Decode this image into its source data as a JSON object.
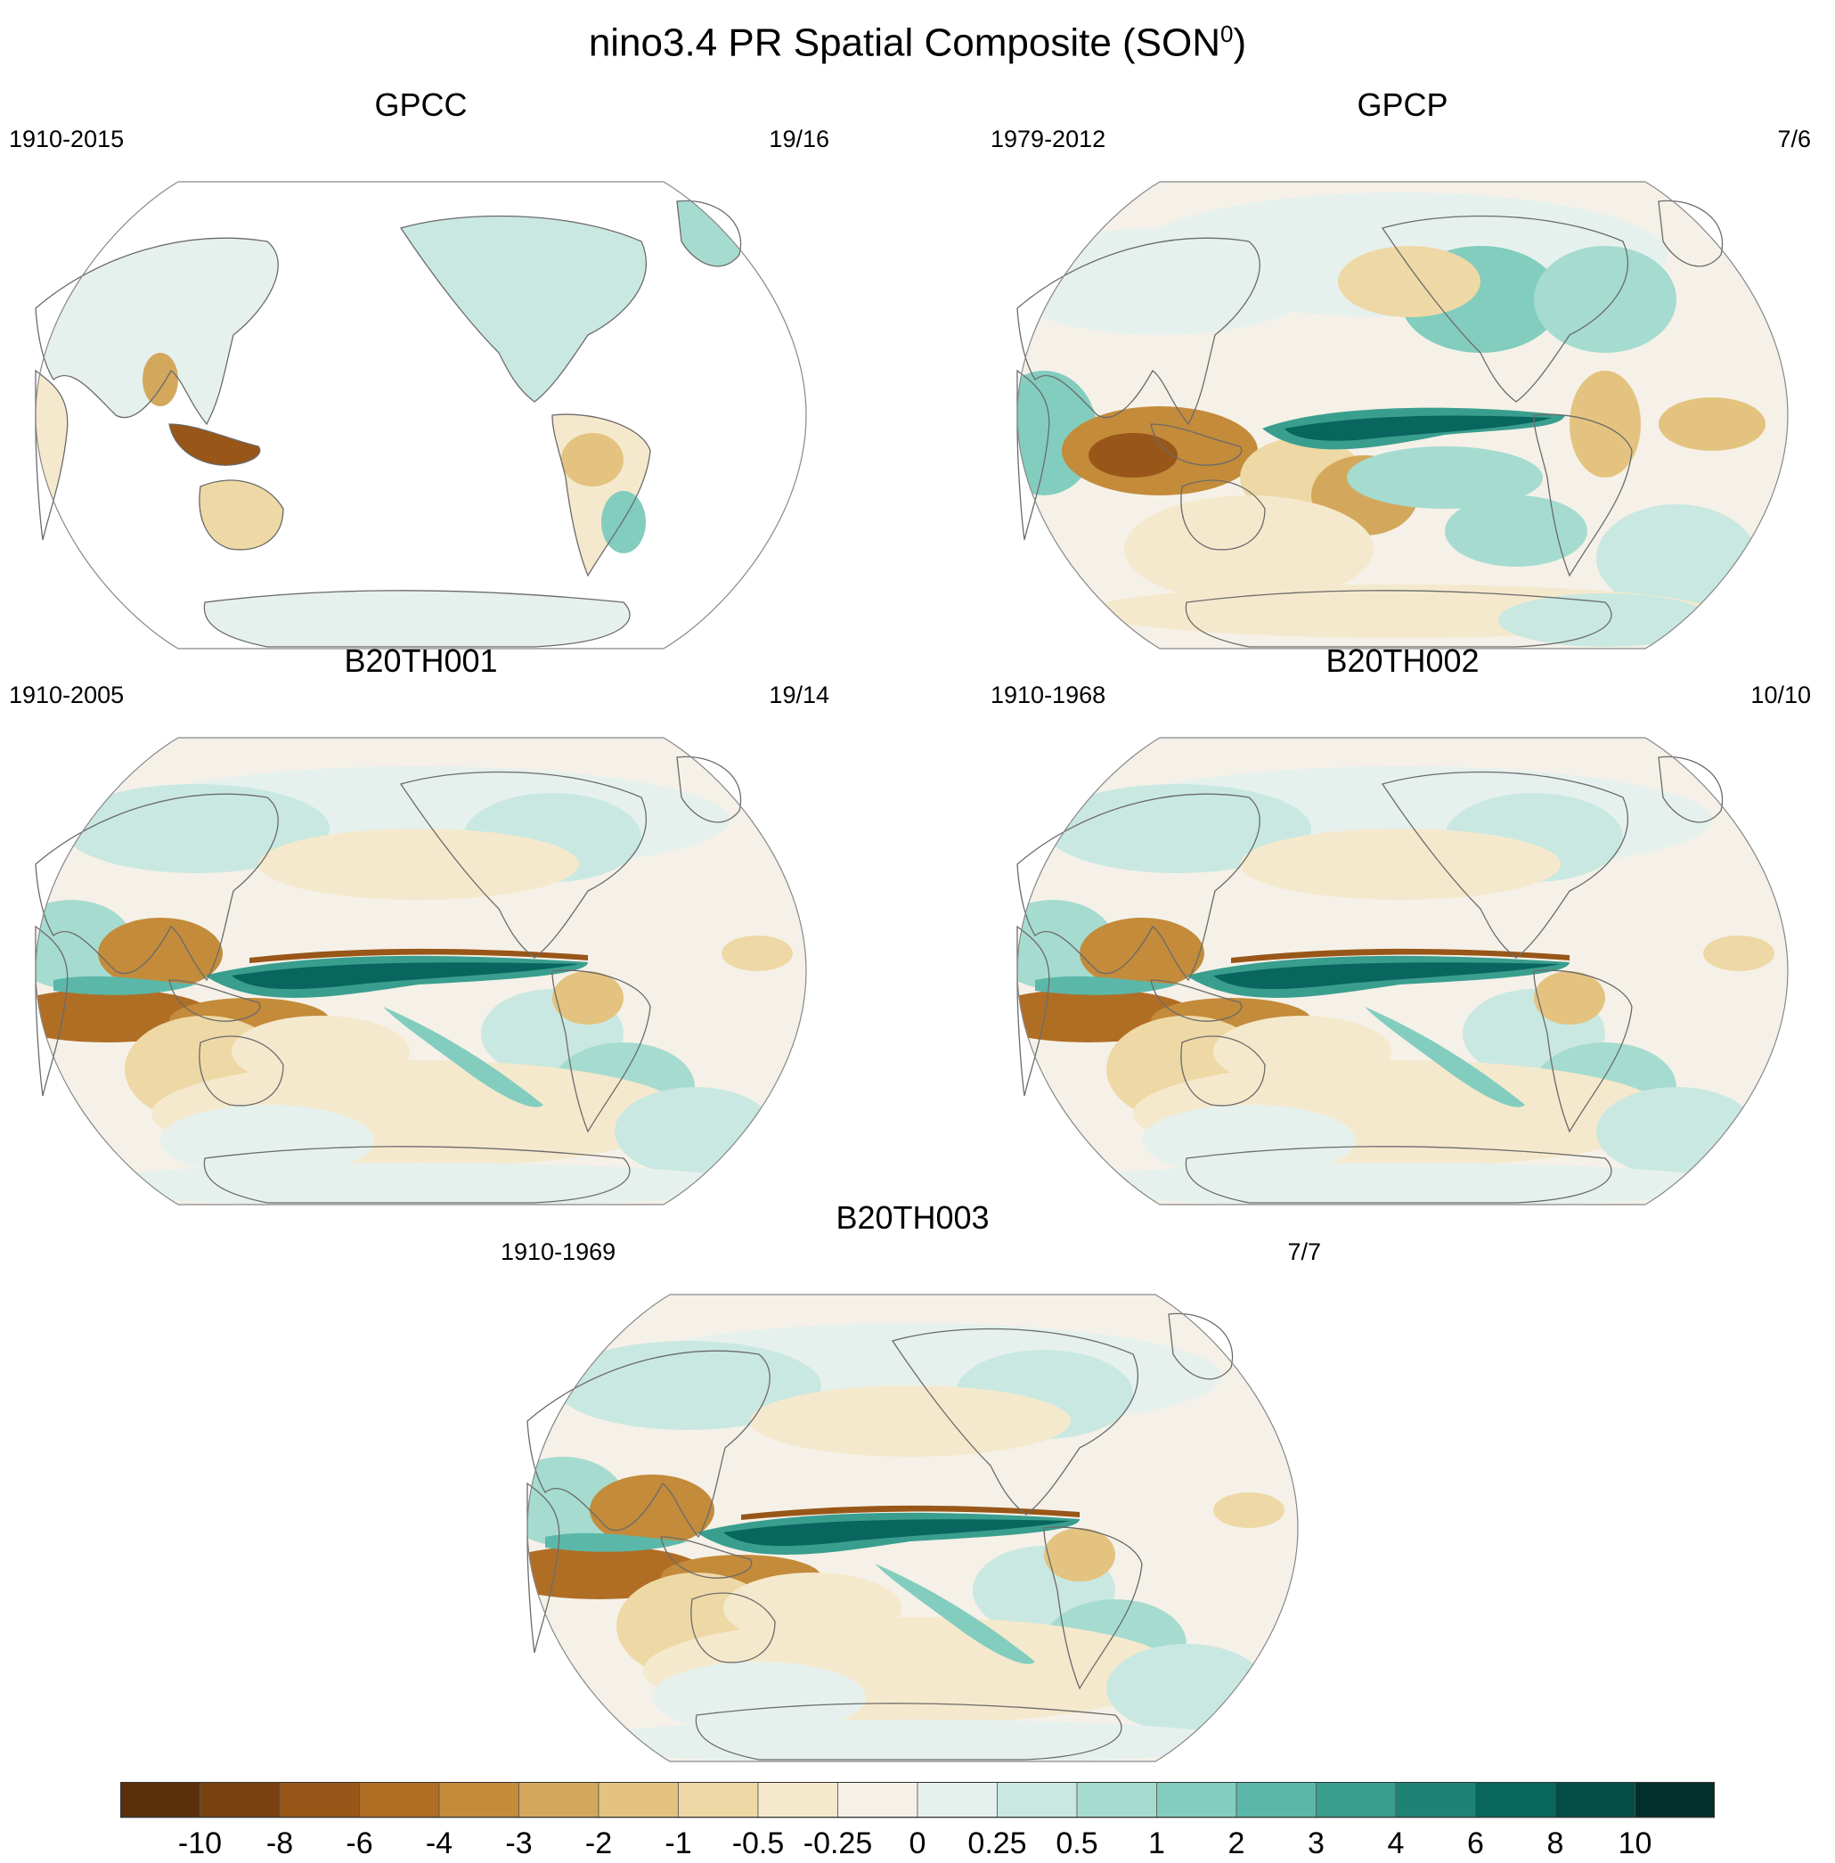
{
  "figure": {
    "title": "nino3.4 PR Spatial Composite (SON",
    "title_superscript": "0",
    "title_close": ")"
  },
  "panels": [
    {
      "title": "GPCC",
      "period": "1910-2015",
      "count": "19/16",
      "coverage": "land"
    },
    {
      "title": "GPCP",
      "period": "1979-2012",
      "count": "7/6",
      "coverage": "global"
    },
    {
      "title": "B20TH001",
      "period": "1910-2005",
      "count": "19/14",
      "coverage": "global-model"
    },
    {
      "title": "B20TH002",
      "period": "1910-1968",
      "count": "10/10",
      "coverage": "global-model"
    },
    {
      "title": "B20TH003",
      "period": "1910-1969",
      "count": "7/7",
      "coverage": "global-model"
    }
  ],
  "colorbar": {
    "labels": [
      "-10",
      "-8",
      "-6",
      "-4",
      "-3",
      "-2",
      "-1",
      "-0.5",
      "-0.25",
      "0",
      "0.25",
      "0.5",
      "1",
      "2",
      "3",
      "4",
      "6",
      "8",
      "10"
    ],
    "colors": [
      "#5a2f0a",
      "#7a4110",
      "#985618",
      "#b06e25",
      "#c38b3a",
      "#d4a85c",
      "#e3c37f",
      "#eed8a5",
      "#f5e9cd",
      "#f5f1e8",
      "#e6f1ee",
      "#c9e8e1",
      "#a6dbd0",
      "#83cdbf",
      "#5bb8a8",
      "#3a9e8f",
      "#1f8277",
      "#08665e",
      "#034d46",
      "#012f2a"
    ]
  }
}
